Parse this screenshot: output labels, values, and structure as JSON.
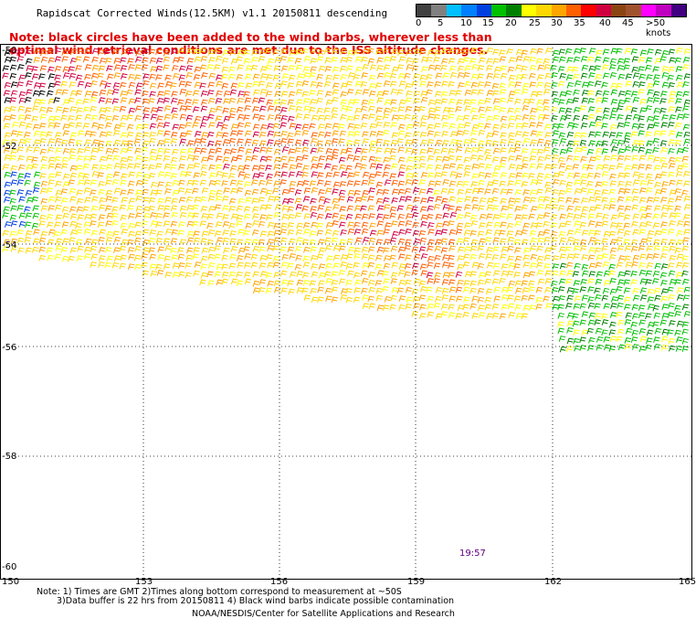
{
  "title": "Rapidscat Corrected Winds(12.5KM) v1.1 20150811 descending",
  "note": [
    "Note: black circles have been added to the wind barbs, wherever less than",
    "optimal wind retrieval conditions are met due to the ISS altitude changes."
  ],
  "legend": {
    "colors": [
      "#404040",
      "#808080",
      "#00bfff",
      "#0080ff",
      "#0040e0",
      "#00c000",
      "#008000",
      "#ffff00",
      "#ffd700",
      "#ffa500",
      "#ff6000",
      "#ff0000",
      "#d00040",
      "#8b4513",
      "#a0522d",
      "#ff00ff",
      "#c000c0",
      "#400080"
    ],
    "labels": [
      "0",
      "5",
      "10",
      "15",
      "20",
      "25",
      "30",
      "35",
      "40",
      "45",
      ">50 knots"
    ]
  },
  "map": {
    "x_ticks": [
      "150",
      "153",
      "156",
      "159",
      "162",
      "165"
    ],
    "y_ticks": [
      "-52",
      "-54",
      "-56",
      "-58",
      "-60"
    ],
    "y_top_label": "-50",
    "time_label": "19:57"
  },
  "footer": {
    "line1": "Note: 1) Times are GMT 2)Times along bottom correspond to measurement at ~50S",
    "line2": "3)Data buffer is 22 hrs from 20150811 4) Black wind barbs indicate possible contamination",
    "credit": "NOAA/NESDIS/Center for Satellite Applications and Research"
  }
}
